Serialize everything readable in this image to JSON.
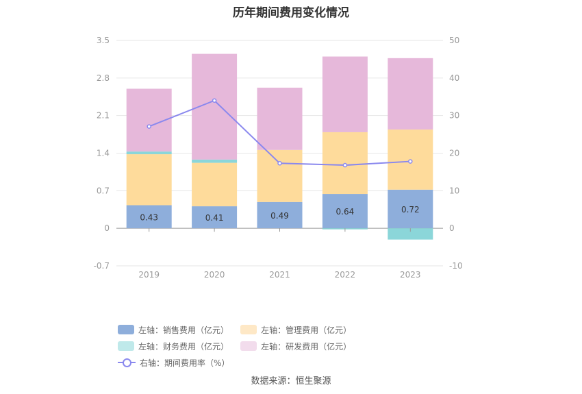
{
  "title": "历年期间费用变化情况",
  "source": "数据来源：恒生聚源",
  "chart_data": {
    "type": "bar",
    "stacked": true,
    "categories": [
      "2019",
      "2020",
      "2021",
      "2022",
      "2023"
    ],
    "left_axis": {
      "min": -0.7,
      "max": 3.5,
      "ticks": [
        "-0.7",
        "0",
        "0.7",
        "1.4",
        "2.1",
        "2.8",
        "3.5"
      ]
    },
    "right_axis": {
      "min": -10,
      "max": 50,
      "ticks": [
        "-10",
        "0",
        "10",
        "20",
        "30",
        "40",
        "50"
      ]
    },
    "grid": true,
    "legend_position": "bottom",
    "series": [
      {
        "name": "左轴：销售费用（亿元）",
        "axis": "left",
        "color": "#8eaedb",
        "values": [
          0.43,
          0.41,
          0.49,
          0.64,
          0.72
        ],
        "labels": [
          "0.43",
          "0.41",
          "0.49",
          "0.64",
          "0.72"
        ]
      },
      {
        "name": "左轴：管理费用（亿元）",
        "axis": "left",
        "color": "#fedb9b",
        "values": [
          0.95,
          0.81,
          0.97,
          1.15,
          1.12
        ]
      },
      {
        "name": "左轴：财务费用（亿元）",
        "axis": "left",
        "color": "#8bd6d9",
        "values": [
          0.05,
          0.06,
          0.0,
          -0.02,
          -0.21
        ]
      },
      {
        "name": "左轴：研发费用（亿元）",
        "axis": "left",
        "color": "#e6b8da",
        "values": [
          1.17,
          1.97,
          1.16,
          1.41,
          1.33
        ]
      },
      {
        "name": "右轴：期间费用率（%）",
        "axis": "right",
        "type": "line",
        "color": "#8a88ee",
        "values": [
          27.1,
          34.0,
          17.3,
          16.8,
          17.8
        ]
      }
    ]
  }
}
